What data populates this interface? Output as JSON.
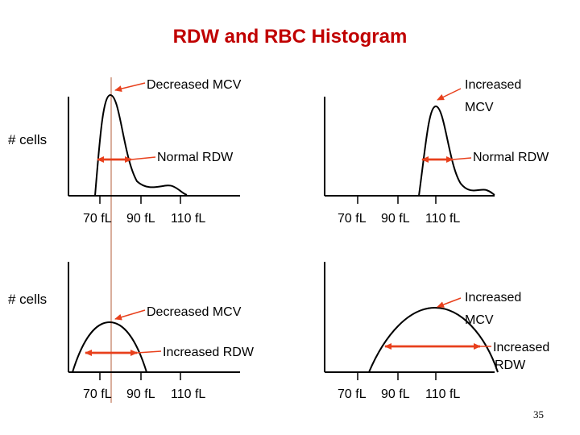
{
  "title": "RDW and RBC Histogram",
  "y_label": "# cells",
  "x_ticks": [
    "70 fL",
    "90 fL",
    "110 fL"
  ],
  "colors": {
    "title": "#c00000",
    "arrow": "#e8401c",
    "reference_line": "#c0785a",
    "axes": "#000000"
  },
  "panels": [
    {
      "id": "top-left",
      "curve": "narrow peak",
      "mcv_label": "Decreased MCV",
      "rdw_label": "Normal RDW"
    },
    {
      "id": "top-right",
      "curve": "narrow peak",
      "mcv_label_lines": [
        "Increased",
        "MCV"
      ],
      "rdw_label": "Normal RDW"
    },
    {
      "id": "bottom-left",
      "curve": "broad bell",
      "mcv_label": "Decreased MCV",
      "rdw_label": "Increased RDW"
    },
    {
      "id": "bottom-right",
      "curve": "broad bell",
      "mcv_label_lines": [
        "Increased",
        "MCV"
      ],
      "rdw_label_lines": [
        "Increased",
        "RDW"
      ]
    }
  ],
  "page_number": "35"
}
